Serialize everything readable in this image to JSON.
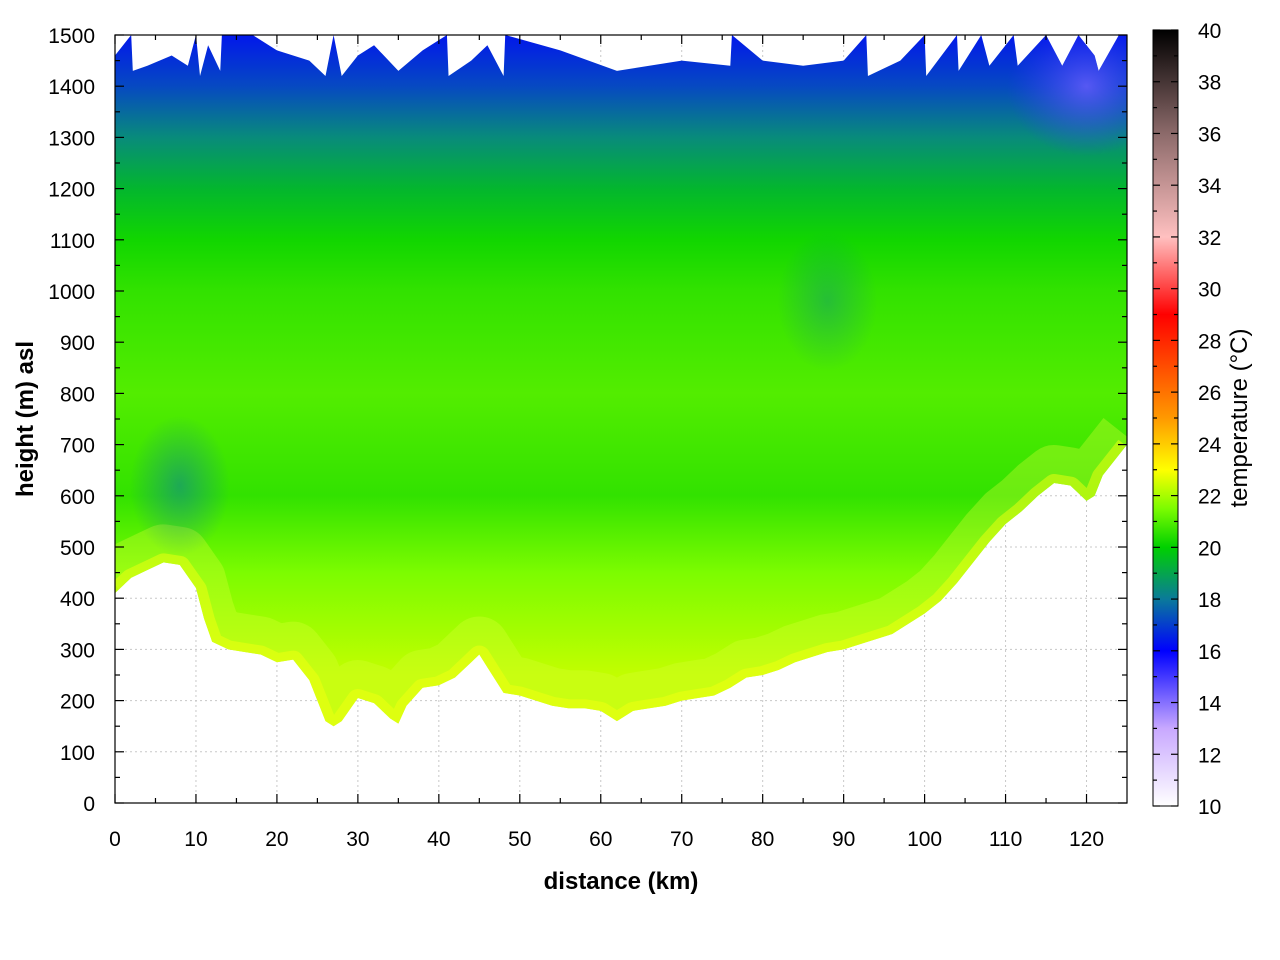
{
  "chart_data": {
    "type": "heatmap",
    "title": "",
    "xlabel": "distance (km)",
    "ylabel": "height (m) asl",
    "xlim": [
      0,
      125
    ],
    "ylim": [
      0,
      1500
    ],
    "x_ticks": [
      0,
      10,
      20,
      30,
      40,
      50,
      60,
      70,
      80,
      90,
      100,
      110,
      120
    ],
    "y_ticks": [
      0,
      100,
      200,
      300,
      400,
      500,
      600,
      700,
      800,
      900,
      1000,
      1100,
      1200,
      1300,
      1400,
      1500
    ],
    "grid": true,
    "colorbar": {
      "label": "temperature (°C)",
      "range": [
        10,
        40
      ],
      "ticks": [
        10,
        12,
        14,
        16,
        18,
        20,
        22,
        24,
        26,
        28,
        30,
        32,
        34,
        36,
        38,
        40
      ],
      "colors": [
        {
          "value": 10,
          "color": "#ffffff"
        },
        {
          "value": 13,
          "color": "#c8a8ff"
        },
        {
          "value": 16,
          "color": "#0000ff"
        },
        {
          "value": 18,
          "color": "#0a7a9a"
        },
        {
          "value": 20,
          "color": "#00d000"
        },
        {
          "value": 21.5,
          "color": "#7cfc00"
        },
        {
          "value": 23,
          "color": "#ffff00"
        },
        {
          "value": 25,
          "color": "#ff9900"
        },
        {
          "value": 29,
          "color": "#ff0000"
        },
        {
          "value": 32,
          "color": "#ffc0c0"
        },
        {
          "value": 36,
          "color": "#8c6a6a"
        },
        {
          "value": 40,
          "color": "#000000"
        }
      ]
    },
    "terrain_profile": {
      "x": [
        0,
        2,
        4,
        6,
        8,
        10,
        11,
        12,
        14,
        16,
        18,
        20,
        22,
        24,
        25,
        26,
        27,
        28,
        30,
        32,
        34,
        35,
        36,
        38,
        40,
        42,
        44,
        45,
        46,
        48,
        50,
        52,
        54,
        56,
        58,
        60,
        62,
        64,
        66,
        68,
        70,
        72,
        74,
        76,
        78,
        80,
        82,
        84,
        86,
        88,
        90,
        92,
        94,
        96,
        98,
        100,
        102,
        104,
        106,
        108,
        110,
        112,
        114,
        116,
        118,
        120,
        121,
        122,
        124,
        125
      ],
      "height_m": [
        410,
        440,
        455,
        470,
        465,
        420,
        360,
        315,
        300,
        295,
        290,
        275,
        280,
        240,
        200,
        160,
        150,
        160,
        205,
        195,
        165,
        155,
        190,
        225,
        230,
        245,
        275,
        290,
        265,
        215,
        210,
        200,
        190,
        185,
        185,
        180,
        160,
        180,
        185,
        190,
        200,
        205,
        210,
        225,
        245,
        250,
        260,
        275,
        285,
        295,
        300,
        310,
        320,
        330,
        350,
        370,
        395,
        430,
        470,
        510,
        545,
        570,
        600,
        625,
        620,
        590,
        600,
        640,
        680,
        700
      ]
    },
    "top_edge": {
      "x": [
        0,
        2,
        2.2,
        4,
        7,
        9,
        10,
        10.5,
        11.5,
        13,
        13.2,
        17,
        20,
        24,
        26,
        27,
        28,
        30,
        32,
        35,
        38,
        41,
        41.2,
        44,
        46,
        48,
        48.2,
        55,
        62,
        70,
        76,
        76.2,
        80,
        85,
        90,
        92.8,
        93,
        97,
        100,
        100.2,
        104,
        104.2,
        107,
        108,
        111,
        111.5,
        115,
        117,
        119,
        121,
        121.5,
        124,
        125
      ],
      "height_m": [
        1460,
        1500,
        1430,
        1440,
        1460,
        1440,
        1500,
        1420,
        1480,
        1430,
        1500,
        1500,
        1470,
        1450,
        1420,
        1500,
        1420,
        1460,
        1480,
        1430,
        1470,
        1500,
        1420,
        1450,
        1480,
        1420,
        1500,
        1470,
        1430,
        1450,
        1440,
        1500,
        1450,
        1440,
        1450,
        1500,
        1420,
        1450,
        1500,
        1420,
        1500,
        1430,
        1500,
        1440,
        1500,
        1440,
        1500,
        1440,
        1500,
        1460,
        1430,
        1500,
        1500
      ]
    },
    "temperature_layers": [
      {
        "height_m": 250,
        "temperature_c": 22.3
      },
      {
        "height_m": 450,
        "temperature_c": 21.5
      },
      {
        "height_m": 600,
        "temperature_c": 20.6
      },
      {
        "height_m": 800,
        "temperature_c": 21.0
      },
      {
        "height_m": 1000,
        "temperature_c": 20.6
      },
      {
        "height_m": 1100,
        "temperature_c": 20.2
      },
      {
        "height_m": 1200,
        "temperature_c": 19.4
      },
      {
        "height_m": 1300,
        "temperature_c": 18.4
      },
      {
        "height_m": 1400,
        "temperature_c": 17.2
      },
      {
        "height_m": 1500,
        "temperature_c": 16.4
      }
    ],
    "cool_spots": [
      {
        "x": 8,
        "height_m": 620,
        "temperature_c": 18.8
      },
      {
        "x": 88,
        "height_m": 980,
        "temperature_c": 19.5
      },
      {
        "x": 120,
        "height_m": 1400,
        "temperature_c": 15.6
      }
    ]
  }
}
